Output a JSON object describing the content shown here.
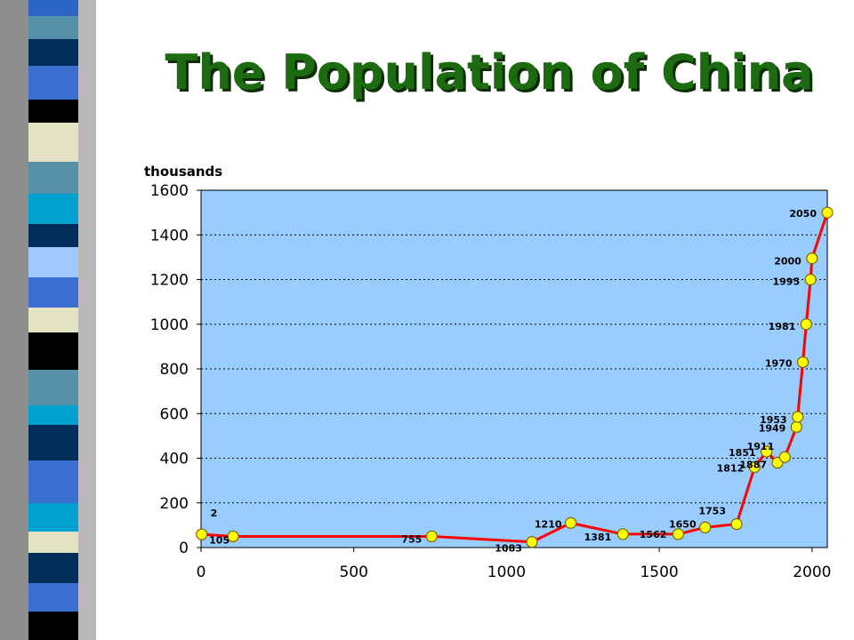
{
  "slide": {
    "title": "The Population of China",
    "colors": {
      "title": "#1c6b10",
      "title_shadow": "#0b2c05"
    },
    "stripe_colors": [
      "#2d64c8",
      "#5591a8",
      "#002d5a",
      "#3a6fd0",
      "#000000",
      "#e3e2c3",
      "#5591a8",
      "#00a0d0",
      "#002d5a",
      "#a0c8ff",
      "#3a6fd0",
      "#e3e2c3",
      "#000000",
      "#5591a8",
      "#00a0d0",
      "#002d5a",
      "#3a6fd0",
      "#00a0d0",
      "#e3e2c3",
      "#002d5a",
      "#3a6fd0",
      "#000000"
    ]
  },
  "chart_data": {
    "type": "line",
    "title": "The Population of China",
    "ylabel": "thousands",
    "xlabel": "",
    "xlim": [
      0,
      2050
    ],
    "ylim": [
      0,
      1600
    ],
    "x_ticks": [
      0,
      500,
      1000,
      1500,
      2000
    ],
    "y_ticks": [
      0,
      200,
      400,
      600,
      800,
      1000,
      1200,
      1400,
      1600
    ],
    "grid": "horizontal dotted",
    "plot_bg": "#99ccff",
    "line_color": "#ff0000",
    "marker_color": "#ffff00",
    "series": [
      {
        "points": [
          {
            "x": 2,
            "y": 59,
            "label": "2"
          },
          {
            "x": 105,
            "y": 50,
            "label": "105"
          },
          {
            "x": 755,
            "y": 50,
            "label": "755"
          },
          {
            "x": 1083,
            "y": 25,
            "label": "1083"
          },
          {
            "x": 1210,
            "y": 110,
            "label": "1210"
          },
          {
            "x": 1381,
            "y": 60,
            "label": "1381"
          },
          {
            "x": 1562,
            "y": 60,
            "label": "1562"
          },
          {
            "x": 1650,
            "y": 90,
            "label": "1650"
          },
          {
            "x": 1753,
            "y": 105,
            "label": "1753"
          },
          {
            "x": 1812,
            "y": 360,
            "label": "1812"
          },
          {
            "x": 1851,
            "y": 430,
            "label": "1851"
          },
          {
            "x": 1887,
            "y": 380,
            "label": "1887"
          },
          {
            "x": 1911,
            "y": 405,
            "label": "1911"
          },
          {
            "x": 1949,
            "y": 540,
            "label": "1949"
          },
          {
            "x": 1953,
            "y": 585,
            "label": "1953"
          },
          {
            "x": 1970,
            "y": 830,
            "label": "1970"
          },
          {
            "x": 1981,
            "y": 1000,
            "label": "1981"
          },
          {
            "x": 1995,
            "y": 1200,
            "label": "1995"
          },
          {
            "x": 2000,
            "y": 1295,
            "label": "2000"
          },
          {
            "x": 2050,
            "y": 1500,
            "label": "2050"
          }
        ]
      }
    ]
  }
}
